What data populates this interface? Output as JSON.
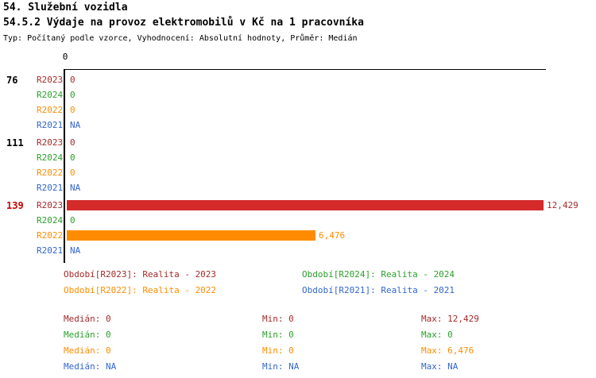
{
  "header": {
    "title1": "54. Služební vozidla",
    "title2": "54.5.2 Výdaje na provoz elektromobilů v Kč na 1 pracovníka",
    "subtitle": "Typ: Počítaný podle vzorce, Vyhodnocení: Absolutní hodnoty, Průměr: Medián"
  },
  "axis": {
    "origin_label": "0"
  },
  "colors": {
    "r2023": "#A52A2A",
    "r2023_bar": "#D42A2A",
    "r2024": "#2CA02C",
    "r2022": "#FF8C00",
    "r2021": "#3366CC",
    "group_highlight": "#CC0000",
    "axis": "#000000"
  },
  "chart_data": {
    "type": "bar",
    "orientation": "horizontal",
    "title": "54.5.2 Výdaje na provoz elektromobilů v Kč na 1 pracovníka",
    "subtitle": "Typ: Počítaný podle vzorce, Vyhodnocení: Absolutní hodnoty, Průměr: Medián",
    "categories": [
      "76",
      "111",
      "139"
    ],
    "series": [
      {
        "name": "R2023",
        "label": "Realita - 2023",
        "values": [
          0,
          0,
          12429
        ]
      },
      {
        "name": "R2024",
        "label": "Realita - 2024",
        "values": [
          0,
          0,
          0
        ]
      },
      {
        "name": "R2022",
        "label": "Realita - 2022",
        "values": [
          0,
          0,
          6476
        ]
      },
      {
        "name": "R2021",
        "label": "Realita - 2021",
        "values": [
          null,
          null,
          null
        ]
      }
    ],
    "xlim": [
      0,
      12429
    ],
    "na_label": "NA",
    "value_labels": true,
    "grid": false,
    "legend_position": "bottom"
  },
  "groups": [
    {
      "id": "76",
      "rows": [
        {
          "series": "R2023",
          "value": 0,
          "value_label": "0"
        },
        {
          "series": "R2024",
          "value": 0,
          "value_label": "0"
        },
        {
          "series": "R2022",
          "value": 0,
          "value_label": "0"
        },
        {
          "series": "R2021",
          "value": null,
          "value_label": "NA"
        }
      ]
    },
    {
      "id": "111",
      "rows": [
        {
          "series": "R2023",
          "value": 0,
          "value_label": "0"
        },
        {
          "series": "R2024",
          "value": 0,
          "value_label": "0"
        },
        {
          "series": "R2022",
          "value": 0,
          "value_label": "0"
        },
        {
          "series": "R2021",
          "value": null,
          "value_label": "NA"
        }
      ]
    },
    {
      "id": "139",
      "rows": [
        {
          "series": "R2023",
          "value": 12429,
          "value_label": "12,429"
        },
        {
          "series": "R2024",
          "value": 0,
          "value_label": "0"
        },
        {
          "series": "R2022",
          "value": 6476,
          "value_label": "6,476"
        },
        {
          "series": "R2021",
          "value": null,
          "value_label": "NA"
        }
      ]
    }
  ],
  "legend": [
    {
      "series": "R2023",
      "label": "Období[R2023]: Realita - 2023"
    },
    {
      "series": "R2024",
      "label": "Období[R2024]: Realita - 2024"
    },
    {
      "series": "R2022",
      "label": "Období[R2022]: Realita - 2022"
    },
    {
      "series": "R2021",
      "label": "Období[R2021]: Realita - 2021"
    }
  ],
  "stats": [
    {
      "series": "R2023",
      "median": "Medián: 0",
      "min": "Min: 0",
      "max": "Max: 12,429"
    },
    {
      "series": "R2024",
      "median": "Medián: 0",
      "min": "Min: 0",
      "max": "Max: 0"
    },
    {
      "series": "R2022",
      "median": "Medián: 0",
      "min": "Min: 0",
      "max": "Max: 6,476"
    },
    {
      "series": "R2021",
      "median": "Medián: NA",
      "min": "Min: NA",
      "max": "Max: NA"
    }
  ]
}
